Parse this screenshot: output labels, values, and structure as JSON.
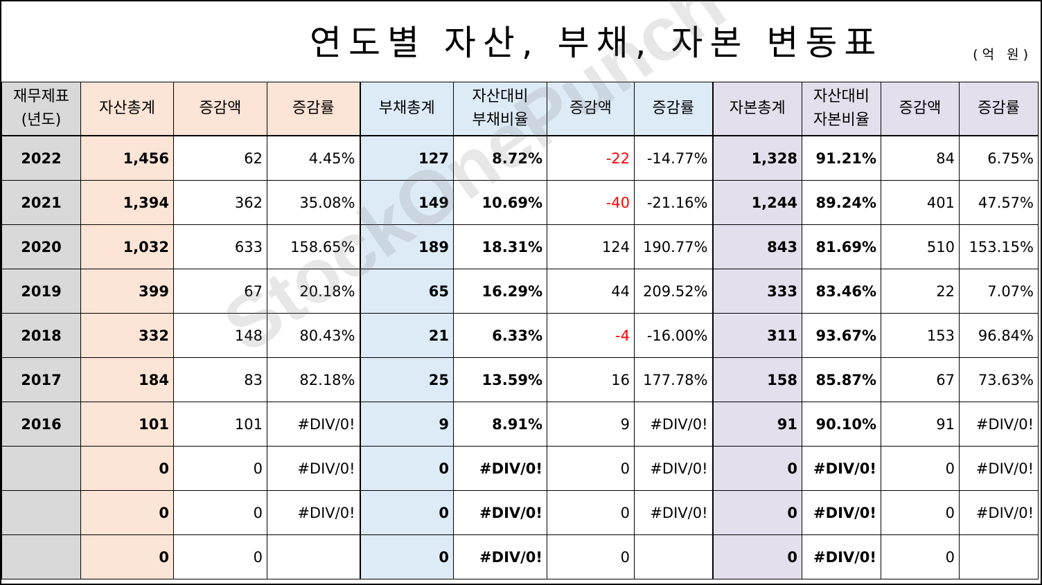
{
  "title": "연도별 자산, 부채, 자본 변동표",
  "unit": "(억 원)",
  "watermark": "StockOnePunch",
  "headers": [
    {
      "line1": "재무제표",
      "line2": "(년도)"
    },
    {
      "line1": "자산총계",
      "line2": ""
    },
    {
      "line1": "증감액",
      "line2": ""
    },
    {
      "line1": "증감률",
      "line2": ""
    },
    {
      "line1": "부채총계",
      "line2": ""
    },
    {
      "line1": "자산대비",
      "line2": "부채비율"
    },
    {
      "line1": "증감액",
      "line2": ""
    },
    {
      "line1": "증감률",
      "line2": ""
    },
    {
      "line1": "자본총계",
      "line2": ""
    },
    {
      "line1": "자산대비",
      "line2": "자본비율"
    },
    {
      "line1": "증감액",
      "line2": ""
    },
    {
      "line1": "증감률",
      "line2": ""
    }
  ],
  "rows": [
    [
      "2022",
      "1,456",
      "62",
      "4.45%",
      "127",
      "8.72%",
      "-22",
      "-14.77%",
      "1,328",
      "91.21%",
      "84",
      "6.75%"
    ],
    [
      "2021",
      "1,394",
      "362",
      "35.08%",
      "149",
      "10.69%",
      "-40",
      "-21.16%",
      "1,244",
      "89.24%",
      "401",
      "47.57%"
    ],
    [
      "2020",
      "1,032",
      "633",
      "158.65%",
      "189",
      "18.31%",
      "124",
      "190.77%",
      "843",
      "81.69%",
      "510",
      "153.15%"
    ],
    [
      "2019",
      "399",
      "67",
      "20.18%",
      "65",
      "16.29%",
      "44",
      "209.52%",
      "333",
      "83.46%",
      "22",
      "7.07%"
    ],
    [
      "2018",
      "332",
      "148",
      "80.43%",
      "21",
      "6.33%",
      "-4",
      "-16.00%",
      "311",
      "93.67%",
      "153",
      "96.84%"
    ],
    [
      "2017",
      "184",
      "83",
      "82.18%",
      "25",
      "13.59%",
      "16",
      "177.78%",
      "158",
      "85.87%",
      "67",
      "73.63%"
    ],
    [
      "2016",
      "101",
      "101",
      "#DIV/0!",
      "9",
      "8.91%",
      "9",
      "#DIV/0!",
      "91",
      "90.10%",
      "91",
      "#DIV/0!"
    ],
    [
      "",
      "0",
      "0",
      "#DIV/0!",
      "0",
      "#DIV/0!",
      "0",
      "#DIV/0!",
      "0",
      "#DIV/0!",
      "0",
      "#DIV/0!"
    ],
    [
      "",
      "0",
      "0",
      "#DIV/0!",
      "0",
      "#DIV/0!",
      "0",
      "#DIV/0!",
      "0",
      "#DIV/0!",
      "0",
      "#DIV/0!"
    ],
    [
      "",
      "0",
      "0",
      "",
      "0",
      "#DIV/0!",
      "0",
      "",
      "0",
      "#DIV/0!",
      "0",
      ""
    ]
  ],
  "colors": {
    "year_fill": "#d9d9d9",
    "asset_fill": "#fce4d6",
    "liability_fill": "#ddebf7",
    "equity_fill": "#e4dfec",
    "negative_text": "#ff0000"
  }
}
